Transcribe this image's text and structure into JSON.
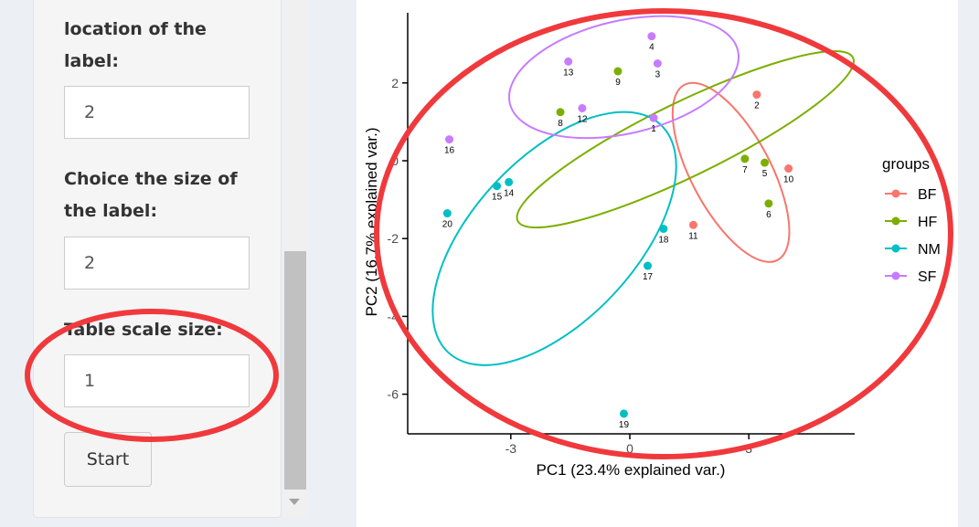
{
  "sidebar": {
    "location_label": "location of the label:",
    "location_value": "2",
    "size_label": "Choice the size of the label:",
    "size_value": "2",
    "table_scale_label": "Table scale size:",
    "table_scale_value": "1",
    "start_button": "Start"
  },
  "annotation_color": "#f0393c",
  "chart_data": {
    "type": "scatter",
    "xlabel": "PC1 (23.4% explained var.)",
    "ylabel": "PC2 (16.7% explained var.)",
    "xlim": [
      -5.8,
      5.6
    ],
    "ylim": [
      -7.0,
      3.8
    ],
    "x_ticks": [
      {
        "value": -3,
        "label": "-3"
      },
      {
        "value": 0,
        "label": "0"
      },
      {
        "value": 3,
        "label": "3"
      }
    ],
    "y_ticks": [
      {
        "value": 2,
        "label": "2"
      },
      {
        "value": 0,
        "label": "0"
      },
      {
        "value": -2,
        "label": "-2"
      },
      {
        "value": -4,
        "label": "-4"
      },
      {
        "value": -6,
        "label": "-6"
      }
    ],
    "legend": {
      "title": "groups",
      "position": "right",
      "entries": [
        {
          "label": "BF",
          "color": "#f8766d"
        },
        {
          "label": "HF",
          "color": "#7cae00"
        },
        {
          "label": "NM",
          "color": "#00bfc4"
        },
        {
          "label": "SF",
          "color": "#c77cff"
        }
      ]
    },
    "points": [
      {
        "label": "1",
        "group": "SF",
        "x": 0.6,
        "y": 1.1
      },
      {
        "label": "2",
        "group": "BF",
        "x": 3.2,
        "y": 1.7
      },
      {
        "label": "3",
        "group": "SF",
        "x": 0.7,
        "y": 2.5
      },
      {
        "label": "4",
        "group": "SF",
        "x": 0.55,
        "y": 3.2
      },
      {
        "label": "5",
        "group": "HF",
        "x": 3.4,
        "y": -0.05
      },
      {
        "label": "6",
        "group": "HF",
        "x": 3.5,
        "y": -1.1
      },
      {
        "label": "7",
        "group": "HF",
        "x": 2.9,
        "y": 0.05
      },
      {
        "label": "8",
        "group": "HF",
        "x": -1.75,
        "y": 1.25
      },
      {
        "label": "9",
        "group": "HF",
        "x": -0.3,
        "y": 2.3
      },
      {
        "label": "10",
        "group": "BF",
        "x": 4.0,
        "y": -0.2
      },
      {
        "label": "11",
        "group": "BF",
        "x": 1.6,
        "y": -1.65
      },
      {
        "label": "12",
        "group": "SF",
        "x": -1.2,
        "y": 1.35
      },
      {
        "label": "13",
        "group": "SF",
        "x": -1.55,
        "y": 2.55
      },
      {
        "label": "14",
        "group": "NM",
        "x": -3.05,
        "y": -0.55
      },
      {
        "label": "15",
        "group": "NM",
        "x": -3.35,
        "y": -0.65
      },
      {
        "label": "16",
        "group": "SF",
        "x": -4.55,
        "y": 0.55
      },
      {
        "label": "17",
        "group": "NM",
        "x": 0.45,
        "y": -2.7
      },
      {
        "label": "18",
        "group": "NM",
        "x": 0.85,
        "y": -1.75
      },
      {
        "label": "19",
        "group": "NM",
        "x": -0.15,
        "y": -6.5
      },
      {
        "label": "20",
        "group": "NM",
        "x": -4.6,
        "y": -1.35
      }
    ],
    "ellipses": [
      {
        "group": "BF",
        "cx": 2.55,
        "cy": -0.3,
        "rx": 1.0,
        "ry": 2.55,
        "angle_deg": 28
      },
      {
        "group": "HF",
        "cx": 1.4,
        "cy": 0.55,
        "rx": 4.7,
        "ry": 0.95,
        "angle_deg": 26
      },
      {
        "group": "NM",
        "cx": -1.9,
        "cy": -2.0,
        "rx": 2.05,
        "ry": 4.0,
        "angle_deg": -43
      },
      {
        "group": "SF",
        "cx": -0.15,
        "cy": 2.15,
        "rx": 2.95,
        "ry": 1.45,
        "angle_deg": 13
      }
    ]
  }
}
